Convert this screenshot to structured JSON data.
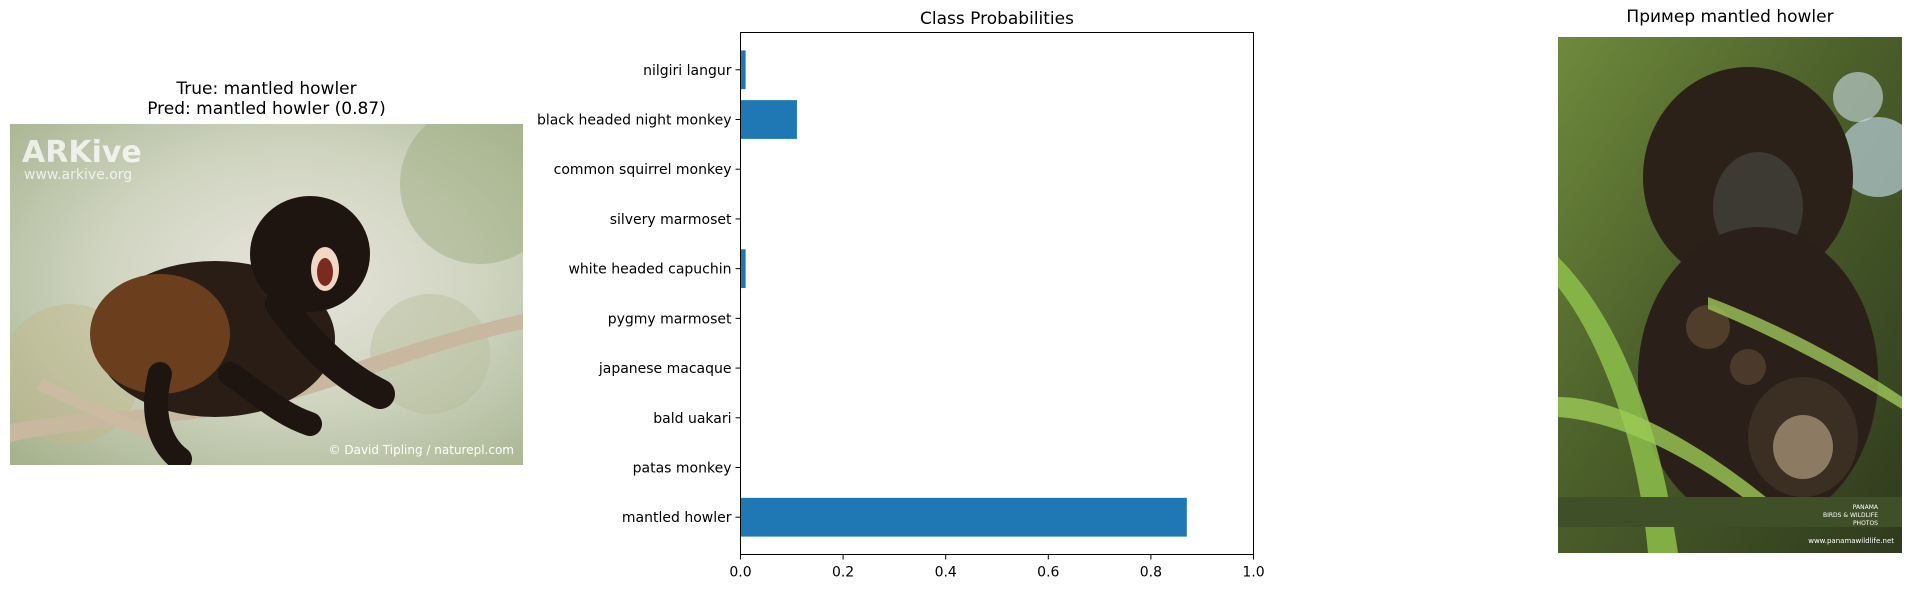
{
  "left_panel": {
    "title_line1": "True: mantled howler",
    "title_line2": "Pred: mantled howler (0.87)",
    "watermark_logo": "ARKive",
    "watermark_url": "www.arkive.org",
    "credit": "© David Tipling / naturepl.com"
  },
  "right_panel": {
    "title": "Пример mantled howler",
    "watermark_line1": "PANAMA",
    "watermark_line2": "BIRDS & WILDLIFE",
    "watermark_line3": "PHOTOS",
    "watermark_url": "www.panamawildlife.net"
  },
  "chart_data": {
    "type": "bar",
    "orientation": "horizontal",
    "title": "Class Probabilities",
    "xlabel": "",
    "ylabel": "",
    "categories": [
      "mantled howler",
      "patas monkey",
      "bald uakari",
      "japanese macaque",
      "pygmy marmoset",
      "white headed capuchin",
      "silvery marmoset",
      "common squirrel monkey",
      "black headed night monkey",
      "nilgiri langur"
    ],
    "values": [
      0.87,
      0.0,
      0.0,
      0.0,
      0.0,
      0.01,
      0.0,
      0.0,
      0.11,
      0.01
    ],
    "xlim": [
      0,
      1.0
    ],
    "xticks": [
      "0.0",
      "0.2",
      "0.4",
      "0.6",
      "0.8",
      "1.0"
    ],
    "bar_color": "#1f77b4",
    "grid": false,
    "legend": "none"
  }
}
